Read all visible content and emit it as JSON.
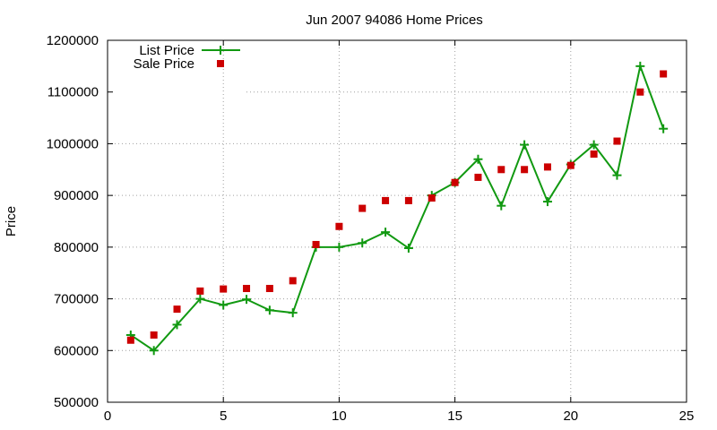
{
  "chart_data": {
    "type": "line",
    "title": "Jun 2007 94086 Home Prices",
    "xlabel": "",
    "ylabel": "Price",
    "xlim": [
      0,
      25
    ],
    "ylim": [
      500000,
      1200000
    ],
    "x_ticks": [
      0,
      5,
      10,
      15,
      20,
      25
    ],
    "y_ticks": [
      500000,
      600000,
      700000,
      800000,
      900000,
      1000000,
      1100000,
      1200000
    ],
    "x_tick_labels": [
      "0",
      "5",
      "10",
      "15",
      "20",
      "25"
    ],
    "y_tick_labels": [
      "500000",
      "600000",
      "700000",
      "800000",
      "900000",
      "1000000",
      "1100000",
      "1200000"
    ],
    "grid": true,
    "legend_position": "top-left",
    "series": [
      {
        "name": "List Price",
        "style": "line-with-plus-markers",
        "color": "#119911",
        "x": [
          1,
          2,
          3,
          4,
          5,
          6,
          7,
          8,
          9,
          10,
          11,
          12,
          13,
          14,
          15,
          16,
          17,
          18,
          19,
          20,
          21,
          22,
          23,
          24
        ],
        "y": [
          630000,
          600000,
          650000,
          700000,
          688000,
          699000,
          678000,
          673000,
          800000,
          800000,
          808000,
          829000,
          798000,
          900000,
          925000,
          970000,
          880000,
          998000,
          888000,
          960000,
          998000,
          939000,
          1150000,
          1029000
        ]
      },
      {
        "name": "Sale Price",
        "style": "square-markers",
        "color": "#cc0000",
        "x": [
          1,
          2,
          3,
          4,
          5,
          6,
          7,
          8,
          9,
          10,
          11,
          12,
          13,
          14,
          15,
          16,
          17,
          18,
          19,
          20,
          21,
          22,
          23,
          24
        ],
        "y": [
          620000,
          630000,
          680000,
          715000,
          719000,
          720000,
          720000,
          735000,
          805000,
          840000,
          875000,
          890000,
          890000,
          895000,
          925000,
          935000,
          950000,
          950000,
          955000,
          958000,
          980000,
          1005000,
          1100000,
          1135000
        ]
      }
    ]
  }
}
